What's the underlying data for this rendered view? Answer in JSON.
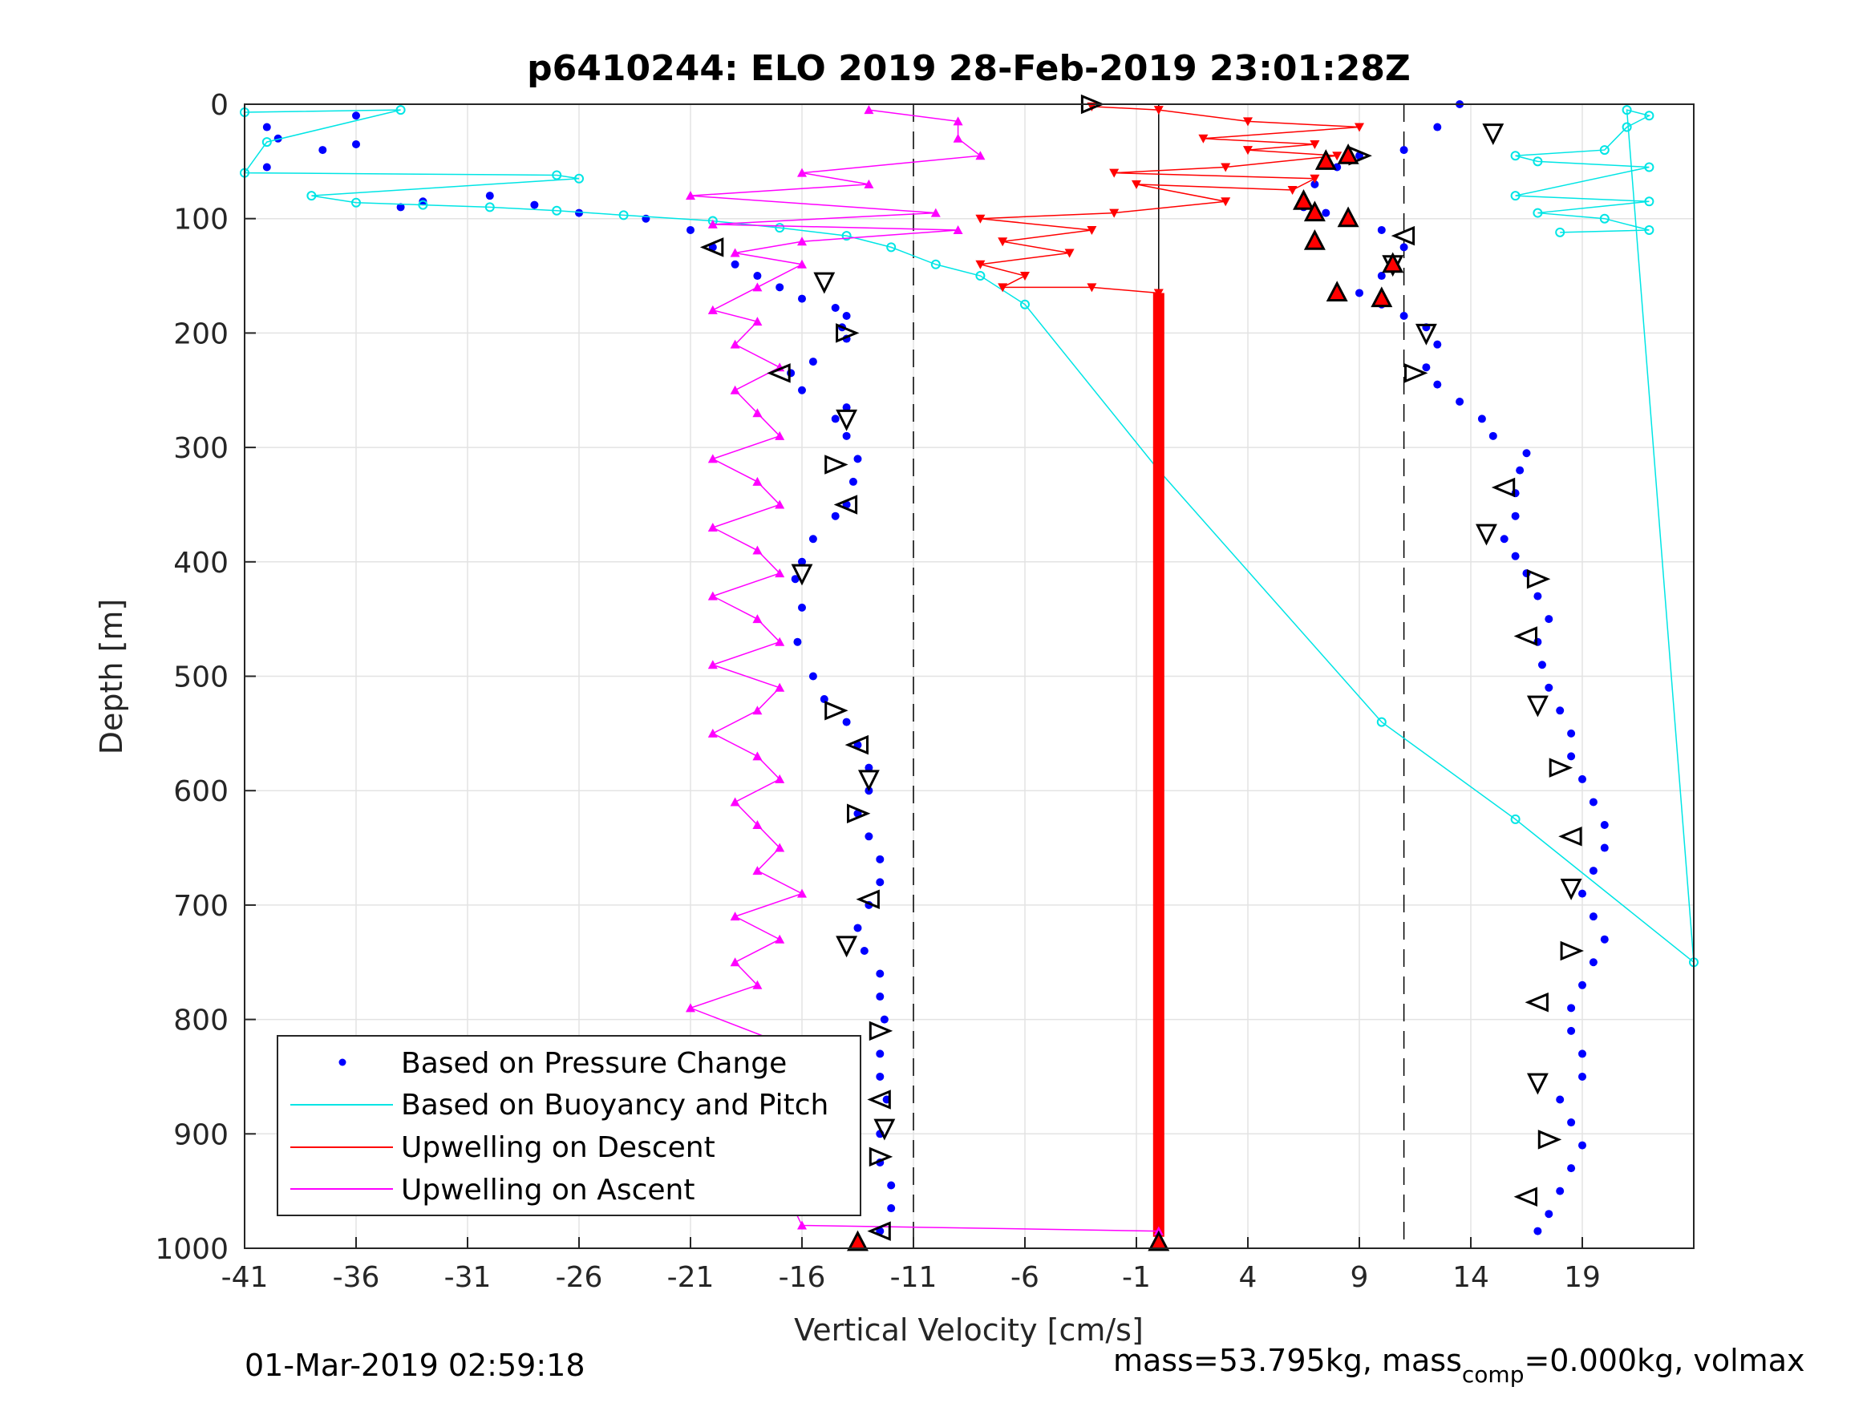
{
  "chart_data": {
    "type": "scatter",
    "title": "p6410244: ELO 2019 28-Feb-2019 23:01:28Z",
    "xlabel": "Vertical Velocity [cm/s]",
    "ylabel": "Depth [m]",
    "xlim": [
      -41,
      24
    ],
    "ylim": [
      1000,
      0
    ],
    "y_reversed": true,
    "grid": true,
    "xticks": [
      -41,
      -36,
      -31,
      -26,
      -21,
      -16,
      -11,
      -6,
      -1,
      4,
      9,
      14,
      19
    ],
    "yticks": [
      0,
      100,
      200,
      300,
      400,
      500,
      600,
      700,
      800,
      900,
      1000
    ],
    "xtick_labels": [
      "-41",
      "-36",
      "-31",
      "-26",
      "-21",
      "-16",
      "-11",
      "-6",
      "-1",
      "4",
      "9",
      "14",
      "19"
    ],
    "ytick_labels": [
      "0",
      "100",
      "200",
      "300",
      "400",
      "500",
      "600",
      "700",
      "800",
      "900",
      "1000"
    ],
    "legend": {
      "placement": "bottom-left",
      "entries": [
        {
          "label": "Based on Pressure Change",
          "color": "#0000ff",
          "marker": "dot"
        },
        {
          "label": "Based on Buoyancy and Pitch",
          "color": "#00e5e5",
          "marker": "line"
        },
        {
          "label": "Upwelling on Descent",
          "color": "#ff0000",
          "marker": "line"
        },
        {
          "label": "Upwelling on Ascent",
          "color": "#ff00ff",
          "marker": "line"
        }
      ]
    },
    "reference_lines": [
      {
        "x": -11,
        "style": "dashed"
      },
      {
        "x": 11,
        "style": "dashed"
      },
      {
        "x": 0,
        "style": "solid"
      }
    ],
    "series": [
      {
        "name": "Based on Pressure Change (descent)",
        "color": "#0000ff",
        "points": [
          [
            -40,
            20
          ],
          [
            -39.5,
            30
          ],
          [
            -40,
            55
          ],
          [
            -37.5,
            40
          ],
          [
            -36,
            35
          ],
          [
            -36,
            10
          ],
          [
            -34,
            90
          ],
          [
            -33,
            85
          ],
          [
            -30,
            80
          ],
          [
            -28,
            88
          ],
          [
            -26,
            95
          ],
          [
            -23,
            100
          ],
          [
            -21,
            110
          ],
          [
            -20,
            125
          ],
          [
            -19,
            140
          ],
          [
            -18,
            150
          ],
          [
            -17,
            160
          ],
          [
            -16,
            170
          ],
          [
            -14.5,
            178
          ],
          [
            -14,
            185
          ],
          [
            -14.2,
            195
          ],
          [
            -14,
            205
          ],
          [
            -15.5,
            225
          ],
          [
            -16.5,
            235
          ],
          [
            -16,
            250
          ],
          [
            -14,
            265
          ],
          [
            -14.5,
            275
          ],
          [
            -14,
            290
          ],
          [
            -13.5,
            310
          ],
          [
            -13.7,
            330
          ],
          [
            -14,
            350
          ],
          [
            -14.5,
            360
          ],
          [
            -15.5,
            380
          ],
          [
            -16,
            400
          ],
          [
            -16.3,
            415
          ],
          [
            -16,
            440
          ],
          [
            -16.2,
            470
          ],
          [
            -15.5,
            500
          ],
          [
            -15,
            520
          ],
          [
            -14,
            540
          ],
          [
            -13.5,
            560
          ],
          [
            -13,
            580
          ],
          [
            -13,
            600
          ],
          [
            -13.5,
            620
          ],
          [
            -13,
            640
          ],
          [
            -12.5,
            660
          ],
          [
            -12.5,
            680
          ],
          [
            -13,
            700
          ],
          [
            -13.5,
            720
          ],
          [
            -13.2,
            740
          ],
          [
            -12.5,
            760
          ],
          [
            -12.5,
            780
          ],
          [
            -12.3,
            800
          ],
          [
            -12.5,
            830
          ],
          [
            -12.5,
            850
          ],
          [
            -12.2,
            870
          ],
          [
            -12.5,
            900
          ],
          [
            -12.5,
            925
          ],
          [
            -12,
            945
          ],
          [
            -12,
            965
          ],
          [
            -12.5,
            985
          ],
          [
            -13.5,
            995
          ]
        ]
      },
      {
        "name": "Based on Pressure Change (ascent)",
        "color": "#0000ff",
        "points": [
          [
            13.5,
            0
          ],
          [
            12.5,
            20
          ],
          [
            11,
            40
          ],
          [
            9,
            45
          ],
          [
            8,
            55
          ],
          [
            7,
            70
          ],
          [
            6.5,
            90
          ],
          [
            7.5,
            95
          ],
          [
            8.5,
            100
          ],
          [
            10,
            110
          ],
          [
            11,
            125
          ],
          [
            10.5,
            140
          ],
          [
            10,
            150
          ],
          [
            9,
            165
          ],
          [
            10,
            175
          ],
          [
            11,
            185
          ],
          [
            12,
            195
          ],
          [
            12.5,
            210
          ],
          [
            12,
            230
          ],
          [
            12.5,
            245
          ],
          [
            13.5,
            260
          ],
          [
            14.5,
            275
          ],
          [
            15,
            290
          ],
          [
            16.5,
            305
          ],
          [
            16.2,
            320
          ],
          [
            16,
            340
          ],
          [
            16,
            360
          ],
          [
            15.5,
            380
          ],
          [
            16,
            395
          ],
          [
            16.5,
            410
          ],
          [
            17,
            430
          ],
          [
            17.5,
            450
          ],
          [
            17,
            470
          ],
          [
            17.2,
            490
          ],
          [
            17.5,
            510
          ],
          [
            18,
            530
          ],
          [
            18.5,
            550
          ],
          [
            18.5,
            570
          ],
          [
            19,
            590
          ],
          [
            19.5,
            610
          ],
          [
            20,
            630
          ],
          [
            20,
            650
          ],
          [
            19.5,
            670
          ],
          [
            19,
            690
          ],
          [
            19.5,
            710
          ],
          [
            20,
            730
          ],
          [
            19.5,
            750
          ],
          [
            19,
            770
          ],
          [
            18.5,
            790
          ],
          [
            18.5,
            810
          ],
          [
            19,
            830
          ],
          [
            19,
            850
          ],
          [
            18,
            870
          ],
          [
            18.5,
            890
          ],
          [
            19,
            910
          ],
          [
            18.5,
            930
          ],
          [
            18,
            950
          ],
          [
            17.5,
            970
          ],
          [
            17,
            985
          ]
        ]
      },
      {
        "name": "Based on Buoyancy and Pitch",
        "color": "#00e5e5",
        "points": [
          [
            -41,
            7
          ],
          [
            -34,
            5
          ],
          [
            -40,
            33
          ],
          [
            -41,
            60
          ],
          [
            -27,
            62
          ],
          [
            -26,
            65
          ],
          [
            -38,
            80
          ],
          [
            -36,
            86
          ],
          [
            -33,
            88
          ],
          [
            -30,
            90
          ],
          [
            -27,
            93
          ],
          [
            -24,
            97
          ],
          [
            -20,
            102
          ],
          [
            -17,
            108
          ],
          [
            -14,
            115
          ],
          [
            -12,
            125
          ],
          [
            -10,
            140
          ],
          [
            -8,
            150
          ],
          [
            -6,
            175
          ],
          [
            0,
            320
          ],
          [
            10,
            540
          ],
          [
            16,
            625
          ],
          [
            24,
            750
          ],
          [
            21,
            5
          ],
          [
            22,
            10
          ],
          [
            21,
            20
          ],
          [
            20,
            40
          ],
          [
            16,
            45
          ],
          [
            17,
            50
          ],
          [
            22,
            55
          ],
          [
            16,
            80
          ],
          [
            22,
            85
          ],
          [
            17,
            95
          ],
          [
            20,
            100
          ],
          [
            22,
            110
          ],
          [
            18,
            112
          ]
        ]
      },
      {
        "name": "Upwelling on Descent",
        "color": "#ff0000",
        "points": [
          [
            0,
            165
          ],
          [
            -3,
            160
          ],
          [
            -7,
            160
          ],
          [
            -6,
            150
          ],
          [
            -8,
            140
          ],
          [
            -4,
            130
          ],
          [
            -7,
            120
          ],
          [
            -3,
            110
          ],
          [
            -8,
            100
          ],
          [
            -2,
            95
          ],
          [
            3,
            85
          ],
          [
            -1,
            70
          ],
          [
            6,
            75
          ],
          [
            7,
            65
          ],
          [
            -2,
            60
          ],
          [
            3,
            55
          ],
          [
            8,
            45
          ],
          [
            4,
            40
          ],
          [
            7,
            35
          ],
          [
            2,
            30
          ],
          [
            9,
            20
          ],
          [
            4,
            15
          ],
          [
            0,
            5
          ],
          [
            -3,
            2
          ]
        ]
      },
      {
        "name": "Upwelling on Ascent",
        "color": "#ff00ff",
        "points": [
          [
            0,
            985
          ],
          [
            -16,
            980
          ],
          [
            -16.5,
            960
          ],
          [
            -16,
            950
          ],
          [
            -20,
            950
          ],
          [
            -16,
            940
          ],
          [
            -17,
            930
          ],
          [
            -19,
            920
          ],
          [
            -17,
            910
          ],
          [
            -20,
            905
          ],
          [
            -18,
            890
          ],
          [
            -17,
            875
          ],
          [
            -18,
            860
          ],
          [
            -19,
            840
          ],
          [
            -17,
            820
          ],
          [
            -21,
            790
          ],
          [
            -18,
            770
          ],
          [
            -19,
            750
          ],
          [
            -17,
            730
          ],
          [
            -19,
            710
          ],
          [
            -16,
            690
          ],
          [
            -18,
            670
          ],
          [
            -17,
            650
          ],
          [
            -18,
            630
          ],
          [
            -19,
            610
          ],
          [
            -17,
            590
          ],
          [
            -18,
            570
          ],
          [
            -20,
            550
          ],
          [
            -18,
            530
          ],
          [
            -17,
            510
          ],
          [
            -20,
            490
          ],
          [
            -17,
            470
          ],
          [
            -18,
            450
          ],
          [
            -20,
            430
          ],
          [
            -17,
            410
          ],
          [
            -18,
            390
          ],
          [
            -20,
            370
          ],
          [
            -17,
            350
          ],
          [
            -18,
            330
          ],
          [
            -20,
            310
          ],
          [
            -17,
            290
          ],
          [
            -18,
            270
          ],
          [
            -19,
            250
          ],
          [
            -17,
            230
          ],
          [
            -19,
            210
          ],
          [
            -18,
            190
          ],
          [
            -20,
            180
          ],
          [
            -18,
            160
          ],
          [
            -16,
            140
          ],
          [
            -19,
            130
          ],
          [
            -16,
            120
          ],
          [
            -9,
            110
          ],
          [
            -20,
            105
          ],
          [
            -10,
            95
          ],
          [
            -21,
            80
          ],
          [
            -13,
            70
          ],
          [
            -16,
            60
          ],
          [
            -8,
            45
          ],
          [
            -9,
            30
          ],
          [
            -9,
            15
          ],
          [
            -13,
            5
          ]
        ]
      }
    ],
    "markers": {
      "open_triangles": [
        [
          -3,
          0
        ],
        [
          -20,
          125
        ],
        [
          -15,
          155
        ],
        [
          -14,
          200
        ],
        [
          -17,
          235
        ],
        [
          -14,
          275
        ],
        [
          -14.5,
          315
        ],
        [
          -14,
          350
        ],
        [
          -16,
          410
        ],
        [
          -14.5,
          530
        ],
        [
          -13.5,
          560
        ],
        [
          -13,
          590
        ],
        [
          -13.5,
          620
        ],
        [
          -13,
          695
        ],
        [
          -14,
          735
        ],
        [
          -12.5,
          810
        ],
        [
          -12.5,
          870
        ],
        [
          -12.3,
          895
        ],
        [
          -12.5,
          920
        ],
        [
          -12.5,
          985
        ],
        [
          12,
          200
        ],
        [
          11.5,
          235
        ],
        [
          15.5,
          335
        ],
        [
          14.7,
          375
        ],
        [
          17,
          415
        ],
        [
          16.5,
          465
        ],
        [
          17,
          525
        ],
        [
          18,
          580
        ],
        [
          18.5,
          640
        ],
        [
          18.5,
          685
        ],
        [
          18.5,
          740
        ],
        [
          17,
          785
        ],
        [
          17,
          855
        ],
        [
          17.5,
          905
        ],
        [
          16.5,
          955
        ],
        [
          15,
          25
        ],
        [
          9,
          45
        ],
        [
          11,
          115
        ],
        [
          10.5,
          140
        ]
      ],
      "red_triangles": [
        [
          7.5,
          50
        ],
        [
          8.5,
          45
        ],
        [
          6.5,
          85
        ],
        [
          7,
          95
        ],
        [
          8.5,
          100
        ],
        [
          7,
          120
        ],
        [
          10.5,
          140
        ],
        [
          8,
          165
        ],
        [
          10,
          170
        ],
        [
          -13.5,
          995
        ],
        [
          0,
          995
        ]
      ]
    },
    "footer_left": "01-Mar-2019 02:59:18",
    "footer_right_prefix": "mass=53.795kg, mass",
    "footer_right_sub": "comp",
    "footer_right_suffix": "=0.000kg, volmax"
  }
}
